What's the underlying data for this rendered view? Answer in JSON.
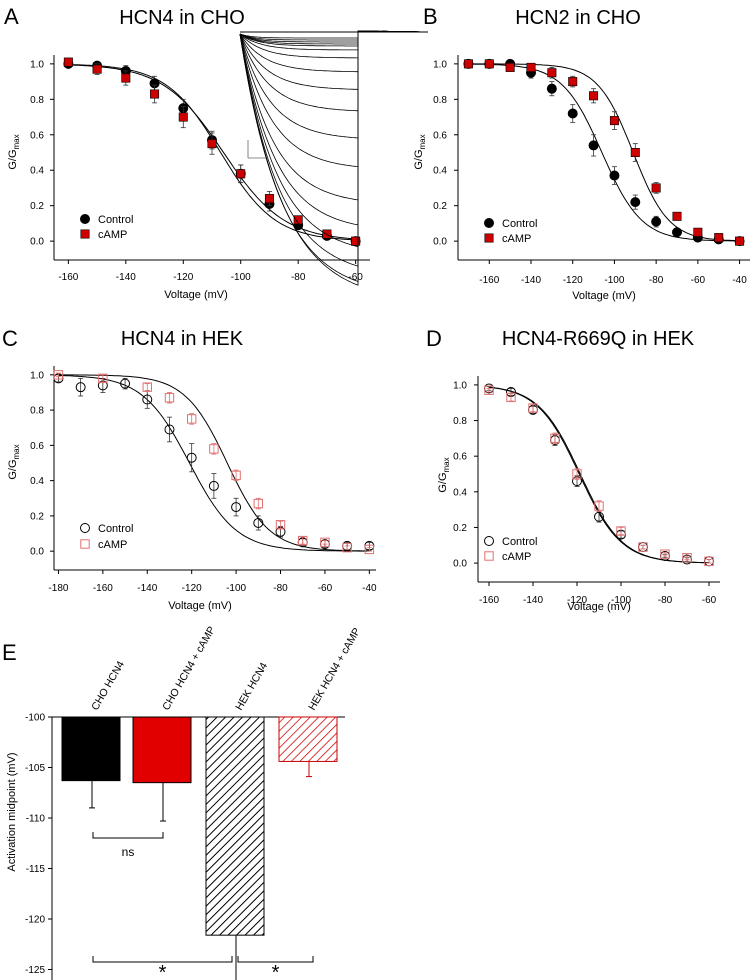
{
  "colors": {
    "control": "#000000",
    "camp": "#cc0000",
    "camp_open": "#e07070",
    "fit": "#000000"
  },
  "panels": {
    "A": {
      "letter": "A",
      "title": "HCN4 in CHO"
    },
    "B": {
      "letter": "B",
      "title": "HCN2 in CHO"
    },
    "C": {
      "letter": "C",
      "title": "HCN4 in HEK"
    },
    "D": {
      "letter": "D",
      "title": "HCN4-R669Q in HEK"
    },
    "E": {
      "letter": "E"
    }
  },
  "axis": {
    "xlabel": "Voltage (mV)",
    "ylabel_main": "G/G",
    "ylabel_sub": "max",
    "ylabel_e": "Activation midpoint (mV)"
  },
  "legend": {
    "control": "Control",
    "camp": "cAMP"
  },
  "chart_data": [
    {
      "id": "A",
      "type": "scatter",
      "title": "HCN4 in CHO",
      "xlabel": "Voltage (mV)",
      "ylabel": "G/Gmax",
      "xlim": [
        -165,
        -55
      ],
      "ylim": [
        -0.05,
        1.05
      ],
      "xticks": [
        -160,
        -140,
        -120,
        -100,
        -80,
        -60
      ],
      "yticks": [
        0.0,
        0.2,
        0.4,
        0.6,
        0.8,
        1.0
      ],
      "markers": "filled",
      "legend": "lower-left",
      "fits": [
        {
          "v_half": -107,
          "k": 9.5
        },
        {
          "v_half": -106,
          "k": 10.5
        }
      ],
      "inset": "current traces",
      "series": [
        {
          "name": "Control",
          "x": [
            -160,
            -150,
            -140,
            -130,
            -120,
            -110,
            -100,
            -90,
            -80,
            -70,
            -60
          ],
          "y": [
            1.0,
            0.99,
            0.96,
            0.89,
            0.75,
            0.57,
            0.38,
            0.21,
            0.09,
            0.03,
            0.0
          ],
          "err": [
            0.02,
            0.02,
            0.03,
            0.04,
            0.05,
            0.05,
            0.05,
            0.04,
            0.02,
            0.01,
            0.01
          ]
        },
        {
          "name": "cAMP",
          "x": [
            -160,
            -150,
            -140,
            -130,
            -120,
            -110,
            -100,
            -90,
            -80,
            -70,
            -60
          ],
          "y": [
            1.01,
            0.97,
            0.92,
            0.83,
            0.7,
            0.55,
            0.38,
            0.24,
            0.12,
            0.04,
            0.0
          ],
          "err": [
            0.02,
            0.03,
            0.04,
            0.05,
            0.06,
            0.06,
            0.05,
            0.04,
            0.02,
            0.01,
            0.01
          ]
        }
      ]
    },
    {
      "id": "B",
      "type": "scatter",
      "title": "HCN2 in CHO",
      "xlabel": "Voltage (mV)",
      "ylabel": "G/Gmax",
      "xlim": [
        -175,
        -35
      ],
      "ylim": [
        -0.05,
        1.05
      ],
      "xticks": [
        -160,
        -140,
        -120,
        -100,
        -80,
        -60,
        -40
      ],
      "yticks": [
        0.0,
        0.2,
        0.4,
        0.6,
        0.8,
        1.0
      ],
      "markers": "filled",
      "legend": "lower-left",
      "fits": [
        {
          "v_half": -106,
          "k": 9.5
        },
        {
          "v_half": -91,
          "k": 8.5
        }
      ],
      "series": [
        {
          "name": "Control",
          "x": [
            -170,
            -160,
            -150,
            -140,
            -130,
            -120,
            -110,
            -100,
            -90,
            -80,
            -70,
            -60,
            -50,
            -40
          ],
          "y": [
            1.0,
            1.0,
            1.0,
            0.95,
            0.86,
            0.72,
            0.54,
            0.37,
            0.22,
            0.11,
            0.05,
            0.02,
            0.01,
            0.0
          ],
          "err": [
            0.02,
            0.02,
            0.02,
            0.03,
            0.04,
            0.05,
            0.06,
            0.05,
            0.04,
            0.03,
            0.02,
            0.01,
            0.01,
            0.01
          ]
        },
        {
          "name": "cAMP",
          "x": [
            -170,
            -160,
            -150,
            -140,
            -130,
            -120,
            -110,
            -100,
            -90,
            -80,
            -70,
            -60,
            -50,
            -40
          ],
          "y": [
            1.0,
            1.0,
            0.98,
            0.98,
            0.95,
            0.9,
            0.82,
            0.68,
            0.5,
            0.3,
            0.14,
            0.05,
            0.02,
            0.0
          ],
          "err": [
            0.02,
            0.02,
            0.02,
            0.02,
            0.03,
            0.03,
            0.04,
            0.05,
            0.05,
            0.03,
            0.02,
            0.01,
            0.01,
            0.01
          ]
        }
      ]
    },
    {
      "id": "C",
      "type": "scatter",
      "title": "HCN4 in HEK",
      "xlabel": "Voltage (mV)",
      "ylabel": "G/Gmax",
      "xlim": [
        -182,
        -37
      ],
      "ylim": [
        -0.05,
        1.05
      ],
      "xticks": [
        -180,
        -160,
        -140,
        -120,
        -100,
        -80,
        -60,
        -40
      ],
      "yticks": [
        0.0,
        0.2,
        0.4,
        0.6,
        0.8,
        1.0
      ],
      "markers": "open",
      "legend": "lower-left",
      "fits": [
        {
          "v_half": -121,
          "k": 10.5
        },
        {
          "v_half": -104,
          "k": 9.5
        }
      ],
      "series": [
        {
          "name": "Control",
          "x": [
            -180,
            -170,
            -160,
            -150,
            -140,
            -130,
            -120,
            -110,
            -100,
            -90,
            -80,
            -70,
            -60,
            -50,
            -40
          ],
          "y": [
            0.98,
            0.93,
            0.94,
            0.95,
            0.86,
            0.69,
            0.53,
            0.37,
            0.25,
            0.16,
            0.11,
            0.05,
            0.04,
            0.03,
            0.03
          ],
          "err": [
            0.02,
            0.05,
            0.04,
            0.03,
            0.05,
            0.07,
            0.08,
            0.07,
            0.05,
            0.04,
            0.03,
            0.02,
            0.02,
            0.02,
            0.02
          ]
        },
        {
          "name": "cAMP",
          "x": [
            -180,
            -160,
            -140,
            -130,
            -120,
            -110,
            -100,
            -90,
            -80,
            -70,
            -60,
            -50,
            -40
          ],
          "y": [
            1.0,
            0.98,
            0.93,
            0.87,
            0.75,
            0.58,
            0.43,
            0.27,
            0.15,
            0.06,
            0.05,
            0.02,
            0.01
          ],
          "err": [
            0.01,
            0.02,
            0.02,
            0.03,
            0.03,
            0.03,
            0.03,
            0.03,
            0.02,
            0.02,
            0.01,
            0.01,
            0.01
          ]
        }
      ]
    },
    {
      "id": "D",
      "type": "scatter",
      "title": "HCN4-R669Q in HEK",
      "xlabel": "Voltage (mV)",
      "ylabel": "G/Gmax",
      "xlim": [
        -165,
        -55
      ],
      "ylim": [
        -0.05,
        1.05
      ],
      "xticks": [
        -160,
        -140,
        -120,
        -100,
        -80,
        -60
      ],
      "yticks": [
        0.0,
        0.2,
        0.4,
        0.6,
        0.8,
        1.0
      ],
      "markers": "open",
      "legend": "lower-left",
      "fits": [
        {
          "v_half": -119,
          "k": 9.5
        },
        {
          "v_half": -118.5,
          "k": 9.5
        }
      ],
      "series": [
        {
          "name": "Control",
          "x": [
            -160,
            -150,
            -140,
            -130,
            -120,
            -110,
            -100,
            -90,
            -80,
            -70,
            -60
          ],
          "y": [
            0.98,
            0.96,
            0.86,
            0.69,
            0.46,
            0.26,
            0.16,
            0.09,
            0.04,
            0.02,
            0.01
          ],
          "err": [
            0.01,
            0.02,
            0.02,
            0.03,
            0.03,
            0.03,
            0.02,
            0.01,
            0.01,
            0.01,
            0.01
          ]
        },
        {
          "name": "cAMP",
          "x": [
            -160,
            -150,
            -140,
            -130,
            -120,
            -110,
            -100,
            -90,
            -80,
            -70,
            -60
          ],
          "y": [
            0.97,
            0.93,
            0.87,
            0.7,
            0.5,
            0.32,
            0.18,
            0.09,
            0.05,
            0.03,
            0.01
          ],
          "err": [
            0.01,
            0.02,
            0.02,
            0.03,
            0.03,
            0.03,
            0.02,
            0.01,
            0.01,
            0.01,
            0.01
          ]
        }
      ]
    },
    {
      "id": "E",
      "type": "bar",
      "ylabel": "Activation midpoint (mV)",
      "ylim": [
        -128,
        -100
      ],
      "baseline": -100,
      "yticks": [
        -100,
        -105,
        -110,
        -115,
        -120,
        -125
      ],
      "categories": [
        "CHO HCN4",
        "CHO HCN4 + cAMP",
        "HEK HCN4",
        "HEK HCN4 + cAMP"
      ],
      "values": [
        -106.3,
        -106.5,
        -121.6,
        -104.4
      ],
      "errors": [
        2.7,
        3.8,
        5.3,
        1.5
      ],
      "styles": [
        "solid-black",
        "solid-red",
        "hatched-black",
        "hatched-red"
      ],
      "comparisons": [
        {
          "between": [
            0,
            1
          ],
          "label": "ns"
        },
        {
          "between": [
            0,
            2
          ],
          "label": "*"
        },
        {
          "between": [
            2,
            3
          ],
          "label": "*"
        }
      ]
    }
  ]
}
